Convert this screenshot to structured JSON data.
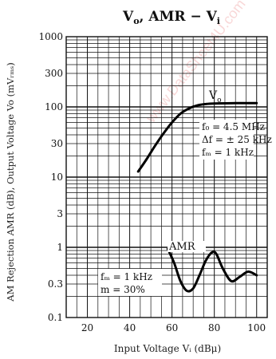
{
  "chart_data": {
    "type": "line",
    "title": "V₀, AMR − Vᵢ",
    "title_parts": {
      "v": "V",
      "o": "o",
      "mid": ", AMR − V",
      "i": "i"
    },
    "xlabel": "Input Voltage Vᵢ (dBμ)",
    "ylabel": "AM Rejection AMR (dB), Output Voltage Vo (mVᵣₘₛ)",
    "xlim": [
      10,
      105
    ],
    "ylim": [
      0.1,
      1000
    ],
    "y_scale": "log",
    "grid": true,
    "x_ticks": [
      {
        "value": 20,
        "label": "20"
      },
      {
        "value": 40,
        "label": "40"
      },
      {
        "value": 60,
        "label": "60"
      },
      {
        "value": 80,
        "label": "80"
      },
      {
        "value": 100,
        "label": "100"
      }
    ],
    "y_ticks": [
      {
        "value": 1000,
        "label": "1000"
      },
      {
        "value": 300,
        "label": "300"
      },
      {
        "value": 100,
        "label": "100"
      },
      {
        "value": 30,
        "label": "30"
      },
      {
        "value": 10,
        "label": "10"
      },
      {
        "value": 3,
        "label": "3"
      },
      {
        "value": 1,
        "label": "1"
      },
      {
        "value": 0.3,
        "label": "0.3"
      },
      {
        "value": 0.1,
        "label": "0.1"
      }
    ],
    "series": [
      {
        "name": "V₀",
        "x": [
          44,
          48,
          52,
          56,
          60,
          64,
          68,
          72,
          76,
          80,
          90,
          100
        ],
        "y": [
          12,
          18,
          28,
          42,
          60,
          80,
          95,
          105,
          110,
          112,
          113,
          113
        ]
      },
      {
        "name": "AMR",
        "x": [
          58,
          61,
          64,
          67,
          70,
          73,
          76,
          79,
          81,
          84,
          88,
          92,
          96,
          100
        ],
        "y": [
          0.95,
          0.6,
          0.33,
          0.24,
          0.26,
          0.4,
          0.65,
          0.85,
          0.8,
          0.5,
          0.33,
          0.38,
          0.45,
          0.4
        ]
      }
    ],
    "annotations": {
      "vo_label": "V",
      "vo_sub": "o",
      "amr_label": "AMR",
      "cond1_line1": "f₀ = 4.5 MHz",
      "cond1_line2": "Δf = ± 25 kHz",
      "cond1_line3": "fₘ = 1 kHz",
      "cond2_line1": "fₘ = 1 kHz",
      "cond2_line2": "m = 30%"
    }
  },
  "watermark": "www.DataSheet4U.com"
}
